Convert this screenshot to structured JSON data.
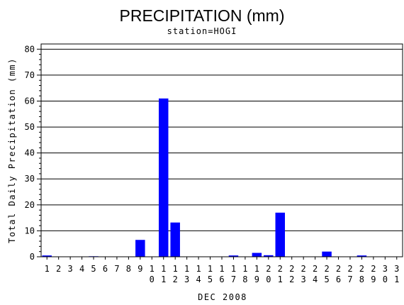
{
  "chart_data": {
    "type": "bar",
    "title": "PRECIPITATION (mm)",
    "subtitle": "station=HOGI",
    "xlabel": "DEC 2008",
    "ylabel": "Total Daily Precipitation (mm)",
    "ylim": [
      0,
      82
    ],
    "yticks": [
      0,
      10,
      20,
      30,
      40,
      50,
      60,
      70,
      80
    ],
    "grid": "horizontal",
    "bar_color": "#0000ff",
    "categories": [
      "1",
      "2",
      "3",
      "4",
      "5",
      "6",
      "7",
      "8",
      "9",
      "10",
      "11",
      "12",
      "13",
      "14",
      "15",
      "16",
      "17",
      "18",
      "19",
      "20",
      "21",
      "22",
      "23",
      "24",
      "25",
      "26",
      "27",
      "28",
      "29",
      "30",
      "31"
    ],
    "values": [
      0.5,
      0,
      0,
      0,
      0.2,
      0,
      0,
      0,
      6.5,
      0,
      61,
      13.2,
      0,
      0,
      0,
      0,
      0.5,
      0,
      1.5,
      0.6,
      17,
      0,
      0,
      0,
      2,
      0,
      0,
      0.5,
      0,
      0,
      0
    ]
  }
}
